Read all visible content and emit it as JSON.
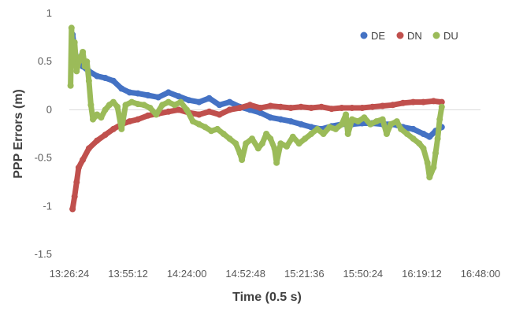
{
  "chart_data": {
    "type": "scatter",
    "title": "",
    "xlabel": "Time (0.5 s)",
    "ylabel": "PPP Errors (m)",
    "x_ticks": [
      "13:26:24",
      "13:55:12",
      "14:24:00",
      "14:52:48",
      "15:21:36",
      "15:50:24",
      "16:19:12",
      "16:48:00"
    ],
    "xlim": [
      "13:26:24",
      "16:48:00"
    ],
    "y_ticks": [
      "1",
      "0.5",
      "0",
      "-0.5",
      "-1",
      "-1.5"
    ],
    "ylim": [
      -1.5,
      1
    ],
    "grid": false,
    "legend_position": "top-right",
    "series": [
      {
        "name": "DE",
        "color": "#4472C4",
        "points": [
          [
            "13:28:00",
            0.78
          ],
          [
            "13:30:00",
            0.5
          ],
          [
            "13:33:00",
            0.45
          ],
          [
            "13:36:00",
            0.4
          ],
          [
            "13:40:00",
            0.35
          ],
          [
            "13:44:00",
            0.33
          ],
          [
            "13:48:00",
            0.3
          ],
          [
            "13:52:00",
            0.22
          ],
          [
            "13:56:00",
            0.18
          ],
          [
            "14:00:00",
            0.17
          ],
          [
            "14:05:00",
            0.15
          ],
          [
            "14:10:00",
            0.13
          ],
          [
            "14:15:00",
            0.18
          ],
          [
            "14:20:00",
            0.14
          ],
          [
            "14:25:00",
            0.1
          ],
          [
            "14:30:00",
            0.08
          ],
          [
            "14:35:00",
            0.12
          ],
          [
            "14:40:00",
            0.05
          ],
          [
            "14:45:00",
            0.08
          ],
          [
            "14:50:00",
            0.03
          ],
          [
            "14:55:00",
            0.0
          ],
          [
            "15:00:00",
            -0.03
          ],
          [
            "15:05:00",
            -0.08
          ],
          [
            "15:10:00",
            -0.1
          ],
          [
            "15:15:00",
            -0.12
          ],
          [
            "15:20:00",
            -0.15
          ],
          [
            "15:25:00",
            -0.18
          ],
          [
            "15:30:00",
            -0.2
          ],
          [
            "15:35:00",
            -0.17
          ],
          [
            "15:40:00",
            -0.15
          ],
          [
            "15:45:00",
            -0.15
          ],
          [
            "15:50:00",
            -0.14
          ],
          [
            "15:55:00",
            -0.14
          ],
          [
            "16:00:00",
            -0.15
          ],
          [
            "16:05:00",
            -0.15
          ],
          [
            "16:10:00",
            -0.18
          ],
          [
            "16:15:00",
            -0.2
          ],
          [
            "16:20:00",
            -0.25
          ],
          [
            "16:23:00",
            -0.28
          ],
          [
            "16:26:00",
            -0.22
          ],
          [
            "16:29:00",
            -0.18
          ]
        ]
      },
      {
        "name": "DN",
        "color": "#C0504D",
        "points": [
          [
            "13:28:00",
            -1.03
          ],
          [
            "13:29:00",
            -0.9
          ],
          [
            "13:30:00",
            -0.75
          ],
          [
            "13:31:00",
            -0.6
          ],
          [
            "13:33:00",
            -0.52
          ],
          [
            "13:36:00",
            -0.4
          ],
          [
            "13:40:00",
            -0.32
          ],
          [
            "13:44:00",
            -0.26
          ],
          [
            "13:48:00",
            -0.2
          ],
          [
            "13:52:00",
            -0.15
          ],
          [
            "13:56:00",
            -0.12
          ],
          [
            "14:00:00",
            -0.1
          ],
          [
            "14:05:00",
            -0.06
          ],
          [
            "14:10:00",
            -0.04
          ],
          [
            "14:15:00",
            -0.02
          ],
          [
            "14:20:00",
            0.0
          ],
          [
            "14:25:00",
            -0.03
          ],
          [
            "14:30:00",
            -0.05
          ],
          [
            "14:35:00",
            -0.02
          ],
          [
            "14:40:00",
            -0.05
          ],
          [
            "14:45:00",
            0.0
          ],
          [
            "14:50:00",
            0.02
          ],
          [
            "14:55:00",
            0.05
          ],
          [
            "15:00:00",
            0.02
          ],
          [
            "15:05:00",
            0.04
          ],
          [
            "15:10:00",
            0.03
          ],
          [
            "15:15:00",
            0.02
          ],
          [
            "15:20:00",
            0.03
          ],
          [
            "15:25:00",
            0.02
          ],
          [
            "15:30:00",
            0.03
          ],
          [
            "15:35:00",
            0.01
          ],
          [
            "15:40:00",
            0.02
          ],
          [
            "15:45:00",
            0.02
          ],
          [
            "15:50:00",
            0.02
          ],
          [
            "15:55:00",
            0.03
          ],
          [
            "16:00:00",
            0.04
          ],
          [
            "16:05:00",
            0.05
          ],
          [
            "16:10:00",
            0.07
          ],
          [
            "16:15:00",
            0.08
          ],
          [
            "16:20:00",
            0.08
          ],
          [
            "16:25:00",
            0.09
          ],
          [
            "16:29:00",
            0.08
          ]
        ]
      },
      {
        "name": "DU",
        "color": "#9BBB59",
        "points": [
          [
            "13:27:00",
            0.25
          ],
          [
            "13:27:30",
            0.85
          ],
          [
            "13:28:00",
            0.5
          ],
          [
            "13:29:00",
            0.7
          ],
          [
            "13:30:00",
            0.4
          ],
          [
            "13:31:00",
            0.5
          ],
          [
            "13:32:00",
            0.55
          ],
          [
            "13:33:00",
            0.6
          ],
          [
            "13:34:00",
            0.45
          ],
          [
            "13:35:00",
            0.5
          ],
          [
            "13:36:00",
            0.3
          ],
          [
            "13:37:00",
            0.05
          ],
          [
            "13:38:00",
            -0.1
          ],
          [
            "13:40:00",
            -0.05
          ],
          [
            "13:42:00",
            -0.08
          ],
          [
            "13:44:00",
            0.0
          ],
          [
            "13:46:00",
            0.05
          ],
          [
            "13:48:00",
            0.08
          ],
          [
            "13:50:00",
            0.03
          ],
          [
            "13:52:00",
            -0.2
          ],
          [
            "13:54:00",
            0.05
          ],
          [
            "13:57:00",
            0.08
          ],
          [
            "14:00:00",
            0.06
          ],
          [
            "14:03:00",
            0.05
          ],
          [
            "14:06:00",
            0.02
          ],
          [
            "14:09:00",
            -0.05
          ],
          [
            "14:12:00",
            0.05
          ],
          [
            "14:15:00",
            0.08
          ],
          [
            "14:18:00",
            0.05
          ],
          [
            "14:21:00",
            0.08
          ],
          [
            "14:24:00",
            0.0
          ],
          [
            "14:27:00",
            -0.12
          ],
          [
            "14:30:00",
            -0.15
          ],
          [
            "14:33:00",
            -0.18
          ],
          [
            "14:36:00",
            -0.22
          ],
          [
            "14:39:00",
            -0.2
          ],
          [
            "14:42:00",
            -0.25
          ],
          [
            "14:45:00",
            -0.3
          ],
          [
            "14:48:00",
            -0.35
          ],
          [
            "14:50:00",
            -0.45
          ],
          [
            "14:51:00",
            -0.52
          ],
          [
            "14:53:00",
            -0.35
          ],
          [
            "14:56:00",
            -0.3
          ],
          [
            "14:59:00",
            -0.4
          ],
          [
            "15:01:00",
            -0.35
          ],
          [
            "15:03:00",
            -0.25
          ],
          [
            "15:05:00",
            -0.3
          ],
          [
            "15:07:00",
            -0.4
          ],
          [
            "15:08:00",
            -0.55
          ],
          [
            "15:10:00",
            -0.35
          ],
          [
            "15:13:00",
            -0.38
          ],
          [
            "15:16:00",
            -0.28
          ],
          [
            "15:19:00",
            -0.35
          ],
          [
            "15:22:00",
            -0.3
          ],
          [
            "15:25:00",
            -0.25
          ],
          [
            "15:28:00",
            -0.2
          ],
          [
            "15:31:00",
            -0.25
          ],
          [
            "15:34:00",
            -0.18
          ],
          [
            "15:37:00",
            -0.2
          ],
          [
            "15:40:00",
            -0.15
          ],
          [
            "15:42:00",
            -0.05
          ],
          [
            "15:43:00",
            -0.25
          ],
          [
            "15:45:00",
            -0.1
          ],
          [
            "15:48:00",
            -0.12
          ],
          [
            "15:51:00",
            -0.08
          ],
          [
            "15:54:00",
            -0.15
          ],
          [
            "15:57:00",
            -0.12
          ],
          [
            "16:00:00",
            -0.1
          ],
          [
            "16:02:00",
            -0.25
          ],
          [
            "16:04:00",
            -0.15
          ],
          [
            "16:07:00",
            -0.12
          ],
          [
            "16:09:00",
            -0.2
          ],
          [
            "16:12:00",
            -0.25
          ],
          [
            "16:15:00",
            -0.3
          ],
          [
            "16:18:00",
            -0.35
          ],
          [
            "16:20:00",
            -0.4
          ],
          [
            "16:22:00",
            -0.55
          ],
          [
            "16:23:00",
            -0.7
          ],
          [
            "16:25:00",
            -0.6
          ],
          [
            "16:26:00",
            -0.45
          ],
          [
            "16:27:00",
            -0.3
          ],
          [
            "16:28:00",
            -0.1
          ],
          [
            "16:29:00",
            0.03
          ]
        ]
      }
    ]
  }
}
